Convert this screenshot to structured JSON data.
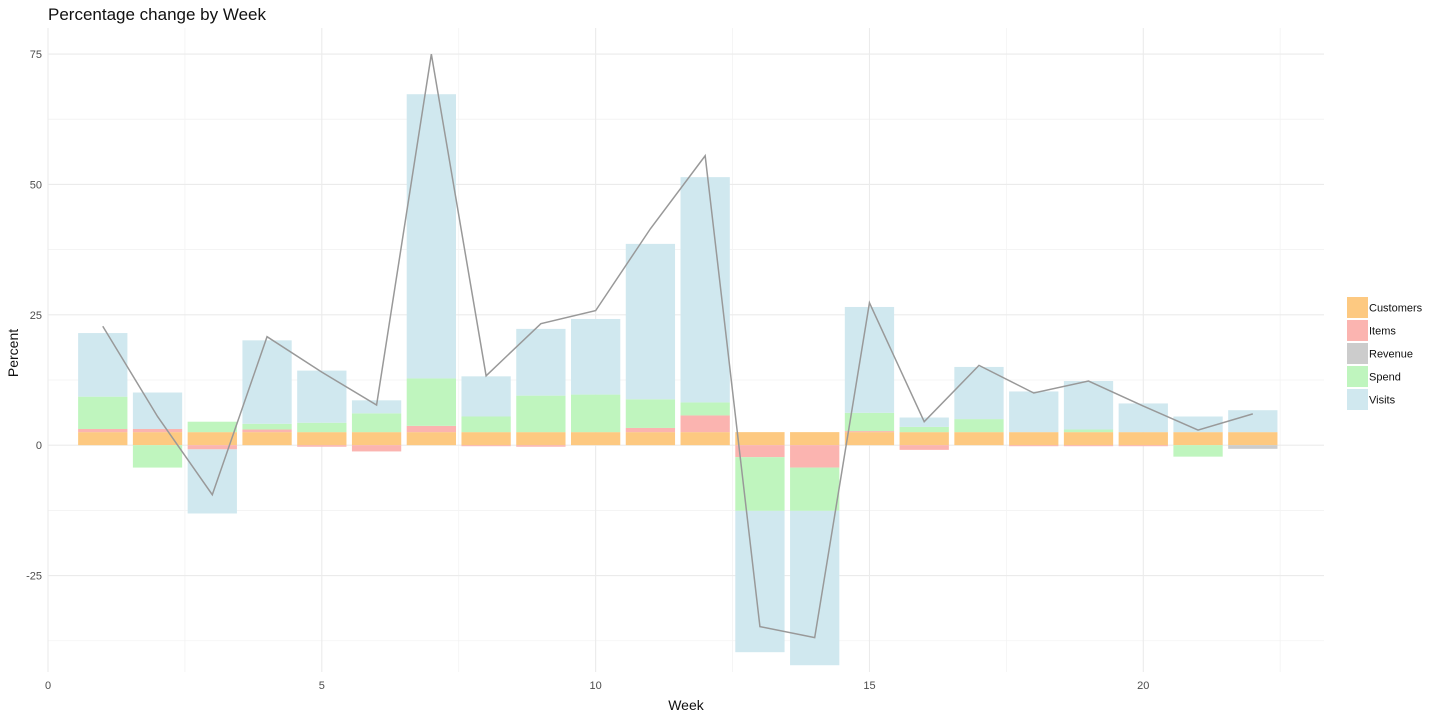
{
  "chart_data": {
    "type": "bar",
    "title": "Percentage change by Week",
    "xlabel": "Week",
    "ylabel": "Percent",
    "xlim": [
      0,
      23.3
    ],
    "ylim": [
      -43.5,
      80
    ],
    "x_ticks": [
      0,
      5,
      10,
      15,
      20
    ],
    "y_ticks": [
      -25,
      0,
      25,
      50,
      75
    ],
    "grid": true,
    "legend_position": "right",
    "stacked": true,
    "categories": [
      1,
      2,
      3,
      4,
      5,
      6,
      7,
      8,
      9,
      10,
      11,
      12,
      13,
      14,
      15,
      16,
      17,
      18,
      19,
      20,
      21,
      22
    ],
    "series": [
      {
        "name": "Customers",
        "color": "#fdc981",
        "values": [
          2.5,
          2.5,
          2.5,
          2.5,
          2.5,
          2.5,
          2.5,
          2.5,
          2.5,
          2.5,
          2.5,
          2.5,
          2.5,
          2.5,
          2.5,
          2.5,
          2.5,
          2.5,
          2.5,
          2.5,
          2.5,
          2.5
        ]
      },
      {
        "name": "Items",
        "color": "#fbb4b0",
        "values": [
          0.6,
          0.6,
          -0.8,
          0.5,
          -0.3,
          -1.2,
          1.2,
          -0.2,
          -0.3,
          0.0,
          0.8,
          3.2,
          -2.3,
          -4.3,
          0.2,
          -0.9,
          0.0,
          -0.2,
          -0.2,
          -0.2,
          0.0,
          0.0
        ]
      },
      {
        "name": "Revenue",
        "color": "#cccccc",
        "values": [
          0,
          0,
          0,
          0,
          0,
          0,
          0,
          0,
          0,
          0,
          0,
          0,
          0,
          0,
          0,
          0,
          0,
          0,
          0,
          0,
          0,
          -0.7
        ]
      },
      {
        "name": "Spend",
        "color": "#bff5be",
        "values": [
          6.2,
          -4.3,
          2.0,
          1.1,
          1.8,
          3.6,
          9.1,
          3.0,
          7.0,
          7.2,
          5.5,
          2.5,
          -10.3,
          -8.3,
          3.5,
          1.0,
          2.5,
          0.0,
          0.5,
          0.0,
          -2.2,
          0.0
        ]
      },
      {
        "name": "Visits",
        "color": "#d0e8ef",
        "values": [
          12.2,
          7.0,
          -12.3,
          16.0,
          10.0,
          2.5,
          54.5,
          7.7,
          12.8,
          14.5,
          29.8,
          43.2,
          -27.1,
          -29.6,
          20.3,
          1.8,
          10.0,
          7.8,
          9.3,
          5.5,
          3.0,
          4.2
        ]
      }
    ],
    "line": {
      "color": "#999999",
      "x": [
        1,
        2,
        3,
        4,
        5,
        6,
        7,
        8,
        9,
        10,
        11,
        12,
        13,
        14,
        15,
        16,
        17,
        18,
        19,
        20,
        21,
        22
      ],
      "values": [
        22.8,
        5.5,
        -9.5,
        20.8,
        14.0,
        7.7,
        75.0,
        13.3,
        23.3,
        25.8,
        41.5,
        55.5,
        -34.8,
        -36.9,
        27.3,
        4.5,
        15.3,
        10.0,
        12.3,
        7.5,
        2.9,
        6.0
      ]
    }
  }
}
